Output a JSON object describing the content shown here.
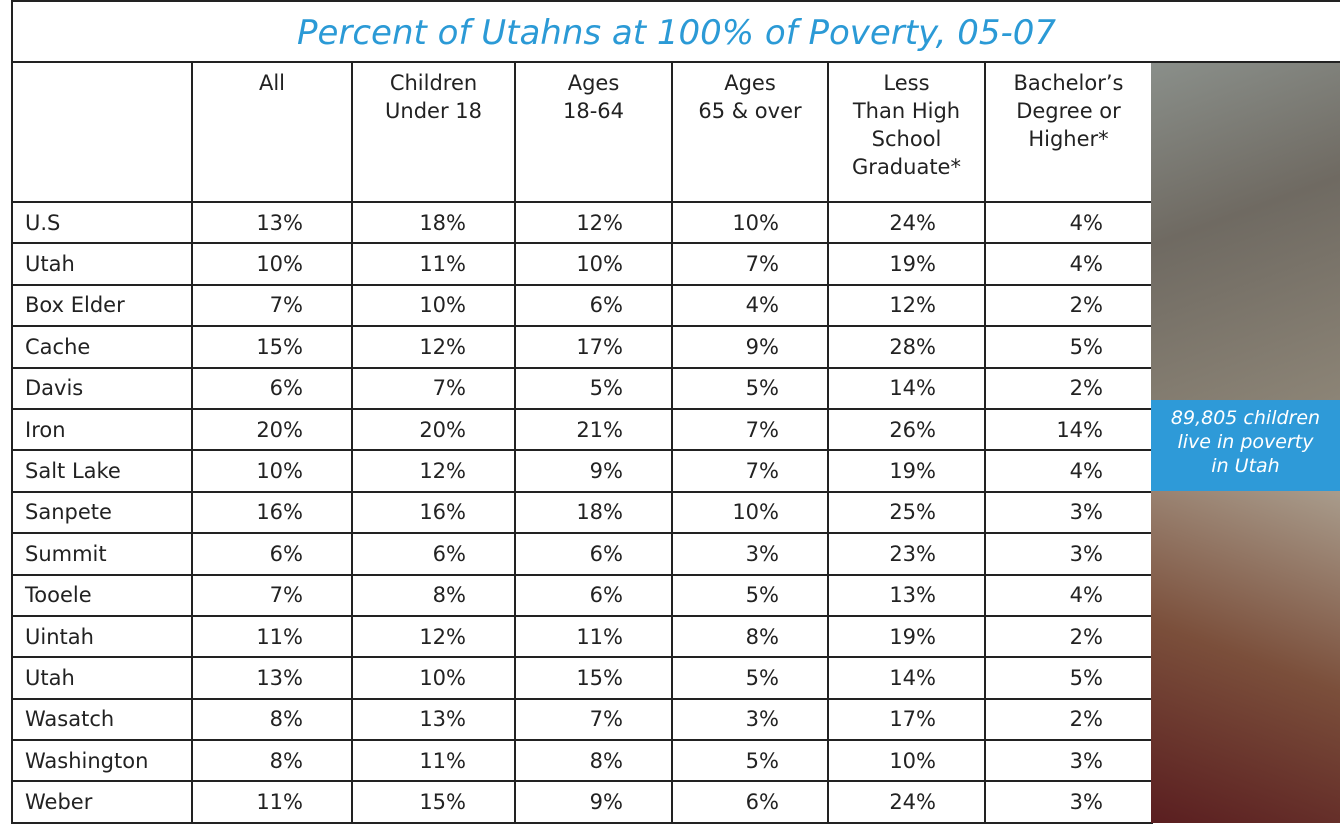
{
  "title": "Percent of Utahns at 100% of Poverty, 05-07",
  "table": {
    "header": [
      [],
      [
        "All"
      ],
      [
        "Children",
        "Under 18"
      ],
      [
        "Ages",
        "18-64"
      ],
      [
        "Ages",
        "65 & over"
      ],
      [
        "Less",
        "Than High",
        "School",
        "Graduate*"
      ],
      [
        "Bachelor’s",
        "Degree or",
        "Higher*"
      ]
    ],
    "rows": [
      [
        "U.S",
        "13%",
        "18%",
        "12%",
        "10%",
        "24%",
        "4%"
      ],
      [
        "Utah",
        "10%",
        "11%",
        "10%",
        "7%",
        "19%",
        "4%"
      ],
      [
        "Box Elder",
        "7%",
        "10%",
        "6%",
        "4%",
        "12%",
        "2%"
      ],
      [
        "Cache",
        "15%",
        "12%",
        "17%",
        "9%",
        "28%",
        "5%"
      ],
      [
        "Davis",
        "6%",
        "7%",
        "5%",
        "5%",
        "14%",
        "2%"
      ],
      [
        "Iron",
        "20%",
        "20%",
        "21%",
        "7%",
        "26%",
        "14%"
      ],
      [
        "Salt Lake",
        "10%",
        "12%",
        "9%",
        "7%",
        "19%",
        "4%"
      ],
      [
        "Sanpete",
        "16%",
        "16%",
        "18%",
        "10%",
        "25%",
        "3%"
      ],
      [
        "Summit",
        "6%",
        "6%",
        "6%",
        "3%",
        "23%",
        "3%"
      ],
      [
        "Tooele",
        "7%",
        "8%",
        "6%",
        "5%",
        "13%",
        "4%"
      ],
      [
        "Uintah",
        "11%",
        "12%",
        "11%",
        "8%",
        "19%",
        "2%"
      ],
      [
        "Utah",
        "13%",
        "10%",
        "15%",
        "5%",
        "14%",
        "5%"
      ],
      [
        "Wasatch",
        "8%",
        "13%",
        "7%",
        "3%",
        "17%",
        "2%"
      ],
      [
        "Washington",
        "8%",
        "11%",
        "8%",
        "5%",
        "10%",
        "3%"
      ],
      [
        "Weber",
        "11%",
        "15%",
        "9%",
        "6%",
        "24%",
        "3%"
      ]
    ]
  },
  "caption": [
    "89,805 children",
    "live in poverty",
    "in Utah"
  ]
}
